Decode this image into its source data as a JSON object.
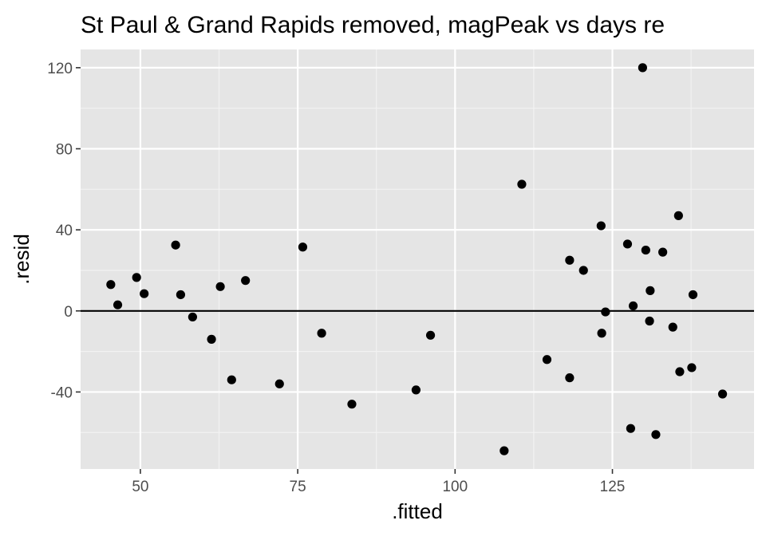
{
  "chart_data": {
    "type": "scatter",
    "title": "St Paul & Grand Rapids removed, magPeak vs days re",
    "xlabel": ".fitted",
    "ylabel": ".resid",
    "xlim": [
      40.5,
      147.5
    ],
    "ylim": [
      -78,
      129
    ],
    "x_ticks": [
      50,
      75,
      100,
      125
    ],
    "x_tick_labels": [
      "50",
      "75",
      "100",
      "125"
    ],
    "y_ticks": [
      -40,
      0,
      40,
      80,
      120
    ],
    "y_tick_labels": [
      "-40",
      "0",
      "40",
      "80",
      "120"
    ],
    "hline": 0,
    "grid": true,
    "legend": "none",
    "colors": {
      "panel": "#e5e5e5",
      "grid_major": "#ffffff",
      "grid_minor": "#f2f2f2",
      "point": "#000000",
      "hline": "#000000",
      "tick": "#333333"
    },
    "points": [
      {
        "x": 45.3,
        "y": 13
      },
      {
        "x": 46.4,
        "y": 3
      },
      {
        "x": 49.4,
        "y": 16.5
      },
      {
        "x": 50.6,
        "y": 8.5
      },
      {
        "x": 55.6,
        "y": 32.5
      },
      {
        "x": 56.4,
        "y": 8
      },
      {
        "x": 58.3,
        "y": -3
      },
      {
        "x": 61.3,
        "y": -14
      },
      {
        "x": 62.7,
        "y": 12
      },
      {
        "x": 64.5,
        "y": -34
      },
      {
        "x": 66.7,
        "y": 15
      },
      {
        "x": 72.1,
        "y": -36
      },
      {
        "x": 75.8,
        "y": 31.5
      },
      {
        "x": 78.8,
        "y": -11
      },
      {
        "x": 83.6,
        "y": -46
      },
      {
        "x": 93.8,
        "y": -39
      },
      {
        "x": 96.1,
        "y": -12
      },
      {
        "x": 107.8,
        "y": -69
      },
      {
        "x": 110.6,
        "y": 62.5
      },
      {
        "x": 114.6,
        "y": -24
      },
      {
        "x": 118.2,
        "y": 25
      },
      {
        "x": 118.2,
        "y": -33
      },
      {
        "x": 120.4,
        "y": 20
      },
      {
        "x": 123.2,
        "y": 42
      },
      {
        "x": 123.3,
        "y": -11
      },
      {
        "x": 123.9,
        "y": -0.5
      },
      {
        "x": 127.4,
        "y": 33
      },
      {
        "x": 127.9,
        "y": -58
      },
      {
        "x": 128.3,
        "y": 2.5
      },
      {
        "x": 129.8,
        "y": 120
      },
      {
        "x": 130.3,
        "y": 30
      },
      {
        "x": 130.9,
        "y": -5
      },
      {
        "x": 131.0,
        "y": 10
      },
      {
        "x": 131.9,
        "y": -61
      },
      {
        "x": 133.0,
        "y": 29
      },
      {
        "x": 134.6,
        "y": -8
      },
      {
        "x": 135.5,
        "y": 47
      },
      {
        "x": 135.7,
        "y": -30
      },
      {
        "x": 137.6,
        "y": -28
      },
      {
        "x": 137.8,
        "y": 8
      },
      {
        "x": 142.5,
        "y": -41
      }
    ]
  }
}
